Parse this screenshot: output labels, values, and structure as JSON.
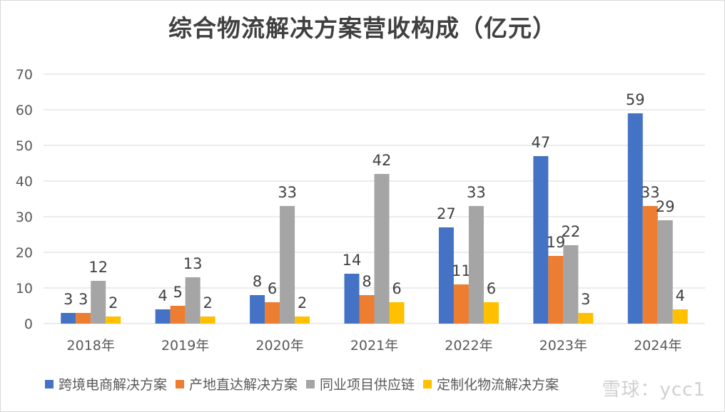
{
  "chart_data": {
    "type": "bar",
    "title": "综合物流解决方案营收构成（亿元）",
    "categories": [
      "2018年",
      "2019年",
      "2020年",
      "2021年",
      "2022年",
      "2023年",
      "2024年"
    ],
    "series": [
      {
        "name": "跨境电商解决方案",
        "color": "#4472C4",
        "values": [
          3,
          4,
          8,
          14,
          27,
          47,
          59
        ]
      },
      {
        "name": "产地直达解决方案",
        "color": "#ED7D31",
        "values": [
          3,
          5,
          6,
          8,
          11,
          19,
          33
        ]
      },
      {
        "name": "同业项目供应链",
        "color": "#A5A5A5",
        "values": [
          12,
          13,
          33,
          42,
          33,
          22,
          29
        ]
      },
      {
        "name": "定制化物流解决方案",
        "color": "#FFC000",
        "values": [
          2,
          2,
          2,
          6,
          6,
          3,
          4
        ]
      }
    ],
    "ylim": [
      0,
      70
    ],
    "yticks": [
      0,
      10,
      20,
      30,
      40,
      50,
      60,
      70
    ],
    "grid": true,
    "legend_position": "bottom",
    "xlabel": "",
    "ylabel": ""
  },
  "watermark": "雪球：ycc1",
  "colors": {
    "grid": "#d9d9d9",
    "text": "#595959"
  }
}
